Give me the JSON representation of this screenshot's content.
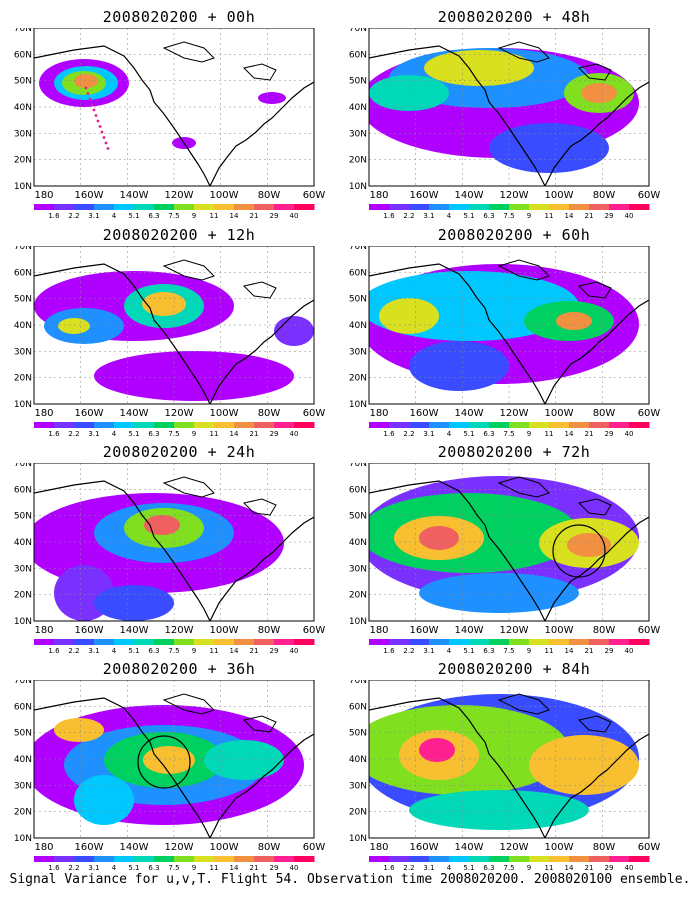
{
  "panels": [
    {
      "title": "2008020200 + 00h"
    },
    {
      "title": "2008020200 + 48h"
    },
    {
      "title": "2008020200 + 12h"
    },
    {
      "title": "2008020200 + 60h"
    },
    {
      "title": "2008020200 + 24h"
    },
    {
      "title": "2008020200 + 72h"
    },
    {
      "title": "2008020200 + 36h"
    },
    {
      "title": "2008020200 + 84h"
    }
  ],
  "lat_labels": [
    "70N",
    "60N",
    "50N",
    "40N",
    "30N",
    "20N",
    "10N"
  ],
  "lon_labels": [
    "180",
    "160W",
    "140W",
    "120W",
    "100W",
    "80W",
    "60W"
  ],
  "colorbar": {
    "labels": [
      "1.6",
      "2.2",
      "3.1",
      "4",
      "5.1",
      "6.3",
      "7.5",
      "9",
      "11",
      "14",
      "21",
      "29",
      "40"
    ],
    "colors": [
      "#b000ff",
      "#7a30ff",
      "#3a4cff",
      "#1e90ff",
      "#00c8ff",
      "#00d8b8",
      "#00d060",
      "#80e020",
      "#d8e020",
      "#f8c030",
      "#f09040",
      "#f06060",
      "#ff2090",
      "#ff0060"
    ]
  },
  "caption": "Signal Variance for u,v,T. Flight 54. Observation time 2008020200. 2008020100 ensemble."
}
